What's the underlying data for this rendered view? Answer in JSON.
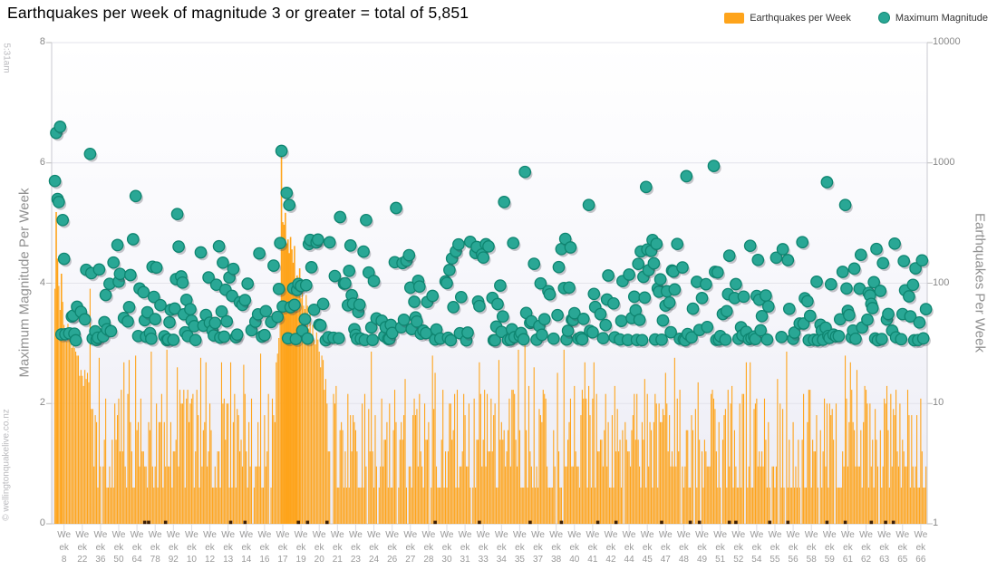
{
  "header": {
    "title": "Earthquakes per week of magnitude 3 or greater = total of 5,851"
  },
  "legend": {
    "items": [
      {
        "label": "Earthquakes per Week",
        "color": "#FEA41B",
        "shape": "square"
      },
      {
        "label": "Maximum Magnitude",
        "color": "#29A795",
        "shape": "circle",
        "ring": "#0E8570"
      }
    ]
  },
  "watermarks": {
    "top_left": "5:31am",
    "bottom_left": "© wellingtonquakelive.co.nz"
  },
  "axes": {
    "left": {
      "title": "Maximum Magnitude Per Week"
    },
    "right": {
      "title": "Earthquakes Per Week"
    }
  },
  "chart_data": {
    "type": "combo",
    "title": "Earthquakes per week of magnitude 3 or greater = total of 5,851",
    "total_earthquakes": 5851,
    "n_weeks": 670,
    "series": [
      {
        "name": "Earthquakes per Week",
        "type": "bar",
        "axis": "right",
        "color": "#FEA41B"
      },
      {
        "name": "Maximum Magnitude",
        "type": "scatter",
        "axis": "left",
        "color": "#29A795"
      }
    ],
    "y_left": {
      "label": "Maximum Magnitude Per Week",
      "min": 0,
      "max": 8,
      "ticks": [
        0,
        2,
        4,
        6,
        8
      ],
      "grid": true
    },
    "y_right": {
      "label": "Earthquakes Per Week",
      "scale": "log",
      "min": 1,
      "max": 10000,
      "ticks": [
        1,
        10,
        100,
        1000,
        10000
      ]
    },
    "x": {
      "tick_prefix_lines": [
        "We",
        "ek"
      ],
      "tick_numbers": [
        "8",
        "22",
        "36",
        "50",
        "64",
        "78",
        "92",
        "10",
        "12",
        "13",
        "14",
        "16",
        "17",
        "19",
        "20",
        "21",
        "23",
        "24",
        "26",
        "27",
        "28",
        "30",
        "31",
        "33",
        "34",
        "35",
        "37",
        "38",
        "40",
        "41",
        "42",
        "44",
        "45",
        "47",
        "48",
        "49",
        "51",
        "52",
        "54",
        "55",
        "56",
        "58",
        "59",
        "61",
        "62",
        "63",
        "65",
        "66"
      ],
      "first_label_week": 8,
      "label_step_weeks": 14
    },
    "bars_spec": {
      "name": "Earthquakes per Week",
      "color": "#FEA41B",
      "seed": 1337,
      "spikes": {
        "1": 90,
        "2": 390,
        "3": 160,
        "4": 95,
        "5": 60,
        "6": 120,
        "7": 70,
        "8": 45,
        "28": 90,
        "63": 25,
        "95": 20,
        "171": 22,
        "172": 26,
        "173": 35,
        "174": 60,
        "175": 1150,
        "293": 18,
        "362": 33,
        "411": 14,
        "448": 12,
        "507": 11,
        "527": 10,
        "594": 10,
        "627": 10,
        "639": 10
      },
      "segments": [
        {
          "from": 9,
          "to": 30,
          "type": "decay",
          "start": 40,
          "end": 10
        },
        {
          "from": 31,
          "to": 170,
          "type": "noise",
          "min": 2,
          "max": 14,
          "gap_chance": 0.05,
          "tall_chance": 0.05,
          "tall_max": 30
        },
        {
          "from": 176,
          "to": 210,
          "type": "decay",
          "start": 380,
          "end": 12
        },
        {
          "from": 211,
          "to": 670,
          "type": "noise",
          "min": 2,
          "max": 14,
          "gap_chance": 0.05,
          "tall_chance": 0.05,
          "tall_max": 28
        }
      ]
    },
    "points_spec": {
      "name": "Maximum Magnitude",
      "color": "#29A795",
      "stroke": "#0E8570",
      "band_min": 3.05,
      "band_max": 4.75,
      "density": 0.6,
      "outliers": {
        "1": 5.7,
        "2": 6.5,
        "3": 5.4,
        "4": 5.35,
        "5": 6.6,
        "7": 5.05,
        "28": 6.15,
        "63": 5.45,
        "95": 5.15,
        "175": 6.2,
        "179": 5.5,
        "181": 5.3,
        "220": 5.1,
        "240": 5.05,
        "263": 5.25,
        "346": 5.35,
        "362": 5.85,
        "411": 5.3,
        "455": 5.6,
        "486": 5.78,
        "507": 5.95,
        "594": 5.68,
        "608": 5.3
      }
    },
    "zero_marker_weeks": [
      70,
      73,
      86,
      136,
      147,
      188,
      195,
      210,
      293,
      327,
      366,
      390,
      418,
      432,
      467,
      489,
      496,
      519,
      524,
      550,
      564,
      594,
      608,
      628,
      639,
      645
    ],
    "zero_marker_color": "#3B1E05"
  }
}
